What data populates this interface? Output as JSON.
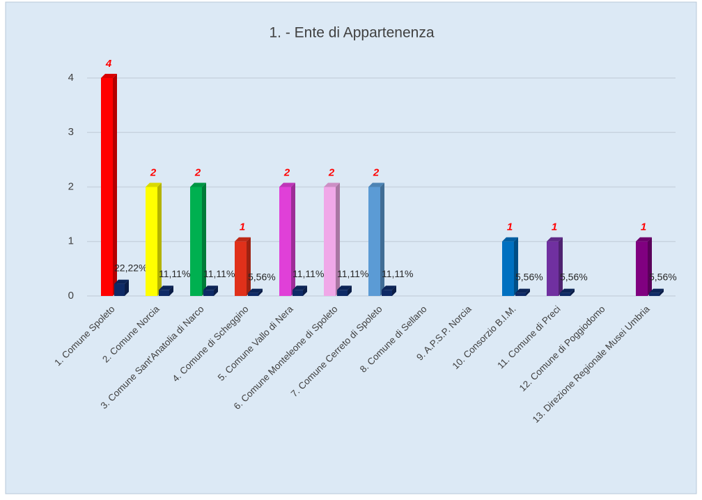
{
  "chart_data": {
    "type": "bar",
    "title": "1. - Ente di Appartenenza",
    "categories": [
      "1. Comune Spoleto",
      "2. Comune Norcia",
      "3. Comune Sant'Anatolia di Narco",
      "4. Comune di Scheggino",
      "5. Comune Vallo di Nera",
      "6. Comune Monteleone di Spoleto",
      "7. Comune Cerreto di Spoleto",
      "8. Comune di Sellano",
      "9. A.P.S.P. Norcia",
      "10. Consorzio B.I.M.",
      "11. Comune di Preci",
      "12. Comune di Poggiodomo",
      "13. Direzione Regionale Musei Umbria"
    ],
    "series": [
      {
        "values": [
          4,
          2,
          2,
          1,
          2,
          2,
          2,
          null,
          null,
          1,
          1,
          null,
          1
        ],
        "colors": [
          "#ff0000",
          "#ffff00",
          "#00b050",
          "#e0301a",
          "#e040d8",
          "#f0a8e8",
          "#5b9bd5",
          null,
          null,
          "#0070c0",
          "#7030a0",
          null,
          "#800080"
        ]
      },
      {
        "color": "#0e2a66",
        "values": [
          0.2222,
          0.1111,
          0.1111,
          0.0556,
          0.1111,
          0.1111,
          0.1111,
          null,
          null,
          0.0556,
          0.0556,
          null,
          0.0556
        ],
        "value_labels": [
          "22,22%",
          "11,11%",
          "11,11%",
          "5,56%",
          "11,11%",
          "11,11%",
          "11,11%",
          null,
          null,
          "5,56%",
          "5,56%",
          null,
          "5,56%"
        ]
      }
    ],
    "ylim": [
      0,
      4
    ],
    "yticks": [
      0,
      1,
      2,
      3,
      4
    ],
    "grid": true
  }
}
